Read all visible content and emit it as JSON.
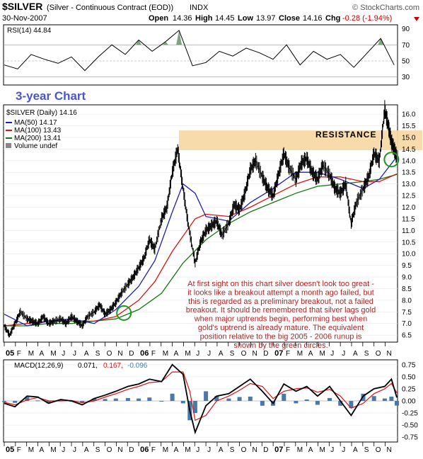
{
  "header": {
    "symbol": "$SILVER",
    "description": "(Silver - Continuous Contract (EOD))",
    "exchange": "INDX",
    "date": "30-Nov-2007",
    "open_label": "Open",
    "open": "14.36",
    "high_label": "High",
    "high": "14.45",
    "low_label": "Low",
    "low": "13.97",
    "close_label": "Close",
    "close": "14.16",
    "chg_label": "Chg",
    "chg": "-0.28 (-1.94%)",
    "watermark": "© StockCharts.com"
  },
  "colors": {
    "price": "#000000",
    "ma50": "#1f1fb4",
    "ma100": "#dd1111",
    "ma200": "#117711",
    "resistance": "#f7d9a6",
    "annotation": "#b22222",
    "chart_title": "#4b55c8",
    "macd": "#000000",
    "signal": "#dd1111",
    "histogram": "#4a78a8",
    "circles": "#1a9a1a"
  },
  "annotations": {
    "chart_title": "3-year Chart",
    "resistance_label": "RESISTANCE",
    "commentary": [
      "At first sight on this chart silver doesn't look too great -",
      "it looks like a breakout attempt a month ago failed, but",
      "this is regarded as a preliminary breakout, not a failed",
      "breakout. It should be remembered that silver lags gold",
      "when major uptrends begin, performing best when",
      "gold's uptrend is already mature. The equivalent",
      "position relative to the big 2005 - 2006 runup is",
      "shown by the green circles."
    ],
    "resistance_band": [
      14.45,
      15.3
    ],
    "circle_points": [
      {
        "x": 2005.89,
        "y": 7.45
      },
      {
        "x": 2007.88,
        "y": 14.05
      }
    ]
  },
  "chart_data": [
    {
      "type": "line",
      "panel": "rsi",
      "title": "RSI(14) 44.84",
      "ylim": [
        20,
        95
      ],
      "ticks": [
        "90",
        "70",
        "50",
        "30"
      ],
      "tick_values": [
        90,
        70,
        50,
        30
      ],
      "reference_lines": [
        70,
        50,
        30
      ],
      "overbought_fill": true,
      "x": [
        2005.0,
        2005.1,
        2005.2,
        2005.3,
        2005.4,
        2005.5,
        2005.6,
        2005.7,
        2005.8,
        2005.9,
        2006.0,
        2006.1,
        2006.2,
        2006.3,
        2006.4,
        2006.5,
        2006.6,
        2006.7,
        2006.8,
        2006.9,
        2007.0,
        2007.1,
        2007.2,
        2007.3,
        2007.4,
        2007.5,
        2007.6,
        2007.7,
        2007.8,
        2007.9
      ],
      "values": [
        45,
        40,
        58,
        52,
        47,
        55,
        38,
        55,
        70,
        58,
        76,
        62,
        74,
        88,
        44,
        48,
        62,
        56,
        66,
        60,
        52,
        70,
        45,
        62,
        52,
        58,
        42,
        60,
        78,
        45
      ]
    },
    {
      "type": "line",
      "panel": "price",
      "legend": [
        "$SILVER (Daily) 14.16",
        "MA(50) 14.17",
        "MA(100) 13.43",
        "MA(200) 13.41",
        "Volume undef"
      ],
      "ylim": [
        6.2,
        16.4
      ],
      "yticks": [
        "16.0",
        "15.5",
        "15.0",
        "14.5",
        "14.0",
        "13.5",
        "13.0",
        "12.5",
        "12.0",
        "11.5",
        "11.0",
        "10.5",
        "10.0",
        "9.5",
        "9.0",
        "8.5",
        "8.0",
        "7.5",
        "7.0",
        "6.5"
      ],
      "ytick_values": [
        16.0,
        15.5,
        15.0,
        14.5,
        14.0,
        13.5,
        13.0,
        12.5,
        12.0,
        11.5,
        11.0,
        10.5,
        10.0,
        9.5,
        9.0,
        8.5,
        8.0,
        7.5,
        7.0,
        6.5
      ],
      "series": [
        {
          "name": "$SILVER (Daily) 14.16",
          "x": [
            2005.0,
            2005.04,
            2005.08,
            2005.12,
            2005.17,
            2005.21,
            2005.25,
            2005.29,
            2005.33,
            2005.37,
            2005.42,
            2005.46,
            2005.5,
            2005.54,
            2005.58,
            2005.62,
            2005.67,
            2005.71,
            2005.75,
            2005.79,
            2005.83,
            2005.87,
            2005.92,
            2005.96,
            2006.0,
            2006.04,
            2006.08,
            2006.12,
            2006.17,
            2006.21,
            2006.25,
            2006.29,
            2006.33,
            2006.37,
            2006.42,
            2006.46,
            2006.5,
            2006.54,
            2006.58,
            2006.62,
            2006.67,
            2006.71,
            2006.75,
            2006.79,
            2006.83,
            2006.87,
            2006.92,
            2006.96,
            2007.0,
            2007.04,
            2007.08,
            2007.12,
            2007.17,
            2007.21,
            2007.25,
            2007.29,
            2007.33,
            2007.37,
            2007.42,
            2007.46,
            2007.5,
            2007.54,
            2007.58,
            2007.62,
            2007.67,
            2007.71,
            2007.75,
            2007.79,
            2007.83,
            2007.86,
            2007.88,
            2007.9,
            2007.92
          ],
          "values": [
            6.9,
            6.5,
            7.0,
            7.5,
            7.2,
            7.1,
            7.0,
            7.3,
            7.0,
            7.1,
            7.2,
            7.0,
            7.3,
            7.1,
            6.9,
            7.3,
            7.5,
            7.8,
            7.4,
            7.6,
            7.9,
            8.3,
            8.7,
            9.0,
            9.4,
            9.8,
            10.6,
            10.2,
            11.5,
            12.0,
            13.5,
            14.5,
            12.8,
            11.2,
            9.6,
            10.5,
            11.0,
            11.2,
            11.4,
            10.8,
            11.3,
            12.1,
            11.9,
            12.6,
            13.6,
            14.0,
            13.3,
            12.8,
            12.5,
            13.4,
            14.3,
            13.7,
            13.2,
            13.9,
            14.1,
            13.5,
            13.2,
            13.8,
            13.4,
            12.8,
            12.6,
            13.0,
            11.3,
            12.2,
            12.8,
            13.3,
            14.3,
            14.0,
            16.2,
            15.4,
            14.8,
            14.5,
            14.16
          ]
        },
        {
          "name": "MA(50) 14.17",
          "x": [
            2005.0,
            2005.17,
            2005.33,
            2005.5,
            2005.67,
            2005.83,
            2006.0,
            2006.12,
            2006.25,
            2006.33,
            2006.42,
            2006.5,
            2006.67,
            2006.83,
            2007.0,
            2007.17,
            2007.33,
            2007.5,
            2007.67,
            2007.79,
            2007.92
          ],
          "values": [
            7.4,
            6.9,
            7.1,
            7.2,
            7.0,
            7.6,
            8.6,
            9.7,
            11.8,
            13.0,
            12.6,
            11.6,
            11.4,
            12.2,
            12.8,
            13.5,
            13.5,
            13.2,
            12.8,
            13.2,
            14.17
          ]
        },
        {
          "name": "MA(100) 13.43",
          "x": [
            2005.0,
            2005.17,
            2005.33,
            2005.5,
            2005.67,
            2005.83,
            2006.0,
            2006.12,
            2006.25,
            2006.42,
            2006.5,
            2006.67,
            2006.83,
            2007.0,
            2007.17,
            2007.33,
            2007.5,
            2007.67,
            2007.79,
            2007.92
          ],
          "values": [
            6.9,
            7.0,
            7.1,
            7.1,
            7.1,
            7.3,
            8.0,
            8.8,
            10.1,
            11.5,
            11.7,
            11.6,
            12.0,
            12.5,
            13.0,
            13.3,
            13.3,
            13.1,
            13.1,
            13.43
          ]
        },
        {
          "name": "MA(200) 13.41",
          "x": [
            2005.0,
            2005.17,
            2005.33,
            2005.5,
            2005.67,
            2005.83,
            2006.0,
            2006.17,
            2006.33,
            2006.5,
            2006.67,
            2006.83,
            2007.0,
            2007.17,
            2007.33,
            2007.5,
            2007.67,
            2007.79,
            2007.92
          ],
          "values": [
            6.9,
            6.9,
            7.0,
            7.0,
            7.1,
            7.2,
            7.6,
            8.3,
            9.6,
            10.6,
            11.3,
            11.8,
            12.2,
            12.6,
            12.9,
            13.0,
            13.1,
            13.2,
            13.41
          ]
        }
      ]
    },
    {
      "type": "line",
      "panel": "macd",
      "legend": [
        "MACD(12,26,9)",
        "0.071,",
        "0.167,",
        "-0.096"
      ],
      "ylim": [
        -0.85,
        0.85
      ],
      "yticks": [
        "0.75",
        "0.50",
        "0.25",
        "0.00",
        "-0.25",
        "-0.50",
        "-0.75"
      ],
      "ytick_values": [
        0.75,
        0.5,
        0.25,
        0.0,
        -0.25,
        -0.5,
        -0.75
      ],
      "x": [
        2005.0,
        2005.08,
        2005.17,
        2005.25,
        2005.33,
        2005.42,
        2005.5,
        2005.58,
        2005.67,
        2005.75,
        2005.83,
        2005.92,
        2006.0,
        2006.08,
        2006.17,
        2006.25,
        2006.33,
        2006.38,
        2006.42,
        2006.5,
        2006.58,
        2006.67,
        2006.75,
        2006.83,
        2006.92,
        2007.0,
        2007.08,
        2007.17,
        2007.25,
        2007.33,
        2007.42,
        2007.5,
        2007.58,
        2007.67,
        2007.75,
        2007.83,
        2007.88,
        2007.92
      ],
      "series": [
        {
          "name": "MACD",
          "values": [
            -0.05,
            -0.12,
            0.1,
            0.08,
            -0.05,
            0.03,
            0.0,
            -0.08,
            0.05,
            0.12,
            0.2,
            0.3,
            0.35,
            0.45,
            0.4,
            0.75,
            0.55,
            -0.2,
            -0.65,
            -0.1,
            0.1,
            0.15,
            0.3,
            0.45,
            0.2,
            -0.05,
            0.35,
            0.2,
            0.3,
            0.1,
            0.3,
            0.0,
            -0.3,
            0.1,
            0.25,
            0.3,
            0.45,
            0.071
          ]
        },
        {
          "name": "Signal",
          "values": [
            -0.03,
            -0.08,
            0.02,
            0.07,
            0.0,
            0.0,
            0.01,
            -0.04,
            0.0,
            0.08,
            0.15,
            0.24,
            0.3,
            0.38,
            0.4,
            0.6,
            0.6,
            0.2,
            -0.4,
            -0.3,
            0.0,
            0.1,
            0.22,
            0.36,
            0.3,
            0.05,
            0.2,
            0.25,
            0.27,
            0.18,
            0.24,
            0.1,
            -0.15,
            -0.05,
            0.15,
            0.25,
            0.36,
            0.167
          ]
        }
      ],
      "histogram": [
        -0.02,
        -0.04,
        0.08,
        0.01,
        -0.05,
        0.03,
        -0.01,
        -0.04,
        0.05,
        0.04,
        0.05,
        0.06,
        0.05,
        0.07,
        0.0,
        0.15,
        -0.05,
        -0.4,
        -0.25,
        0.2,
        0.1,
        0.05,
        0.08,
        0.09,
        -0.1,
        -0.1,
        0.15,
        -0.05,
        0.03,
        -0.08,
        0.06,
        -0.1,
        -0.15,
        0.15,
        0.1,
        0.05,
        0.09,
        -0.096
      ]
    }
  ],
  "x_axis": {
    "xlim": [
      2005.0,
      2007.92
    ],
    "labels": [
      "05",
      "F",
      "M",
      "A",
      "M",
      "J",
      "J",
      "A",
      "S",
      "O",
      "N",
      "D",
      "06",
      "F",
      "M",
      "A",
      "M",
      "J",
      "J",
      "A",
      "S",
      "O",
      "N",
      "D",
      "07",
      "F",
      "M",
      "A",
      "M",
      "J",
      "J",
      "A",
      "S",
      "O",
      "N"
    ],
    "bold": [
      "05",
      "06",
      "07"
    ]
  }
}
